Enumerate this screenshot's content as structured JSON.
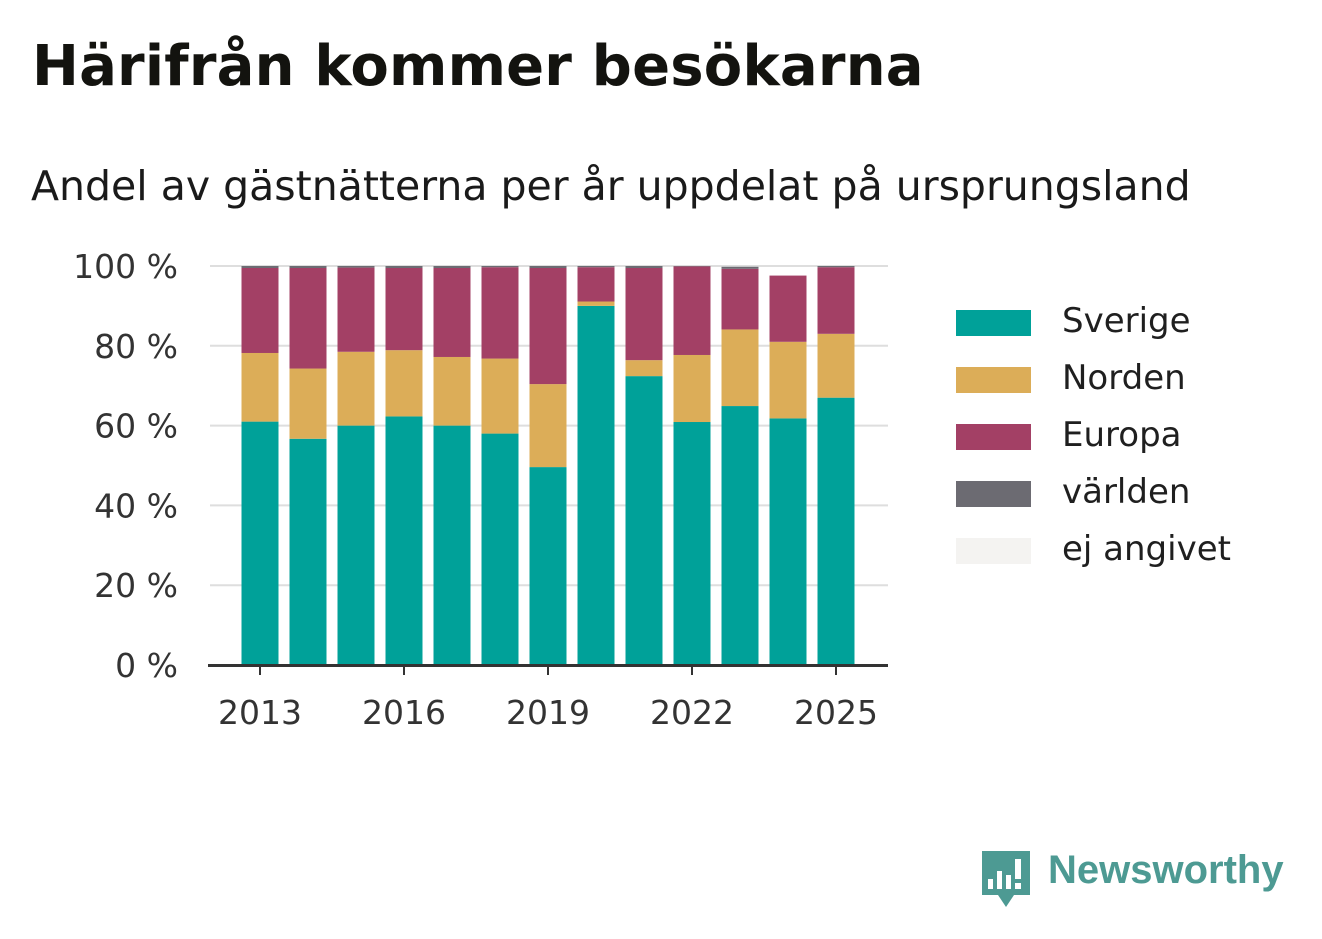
{
  "title": "Härifrån kommer besökarna",
  "subtitle": "Andel av gästnätterna per år uppdelat på ursprungsland",
  "legend": [
    {
      "label": "Sverige",
      "color": "#00a199"
    },
    {
      "label": "Norden",
      "color": "#dcad58"
    },
    {
      "label": "Europa",
      "color": "#a34065"
    },
    {
      "label": "världen",
      "color": "#6c6b72"
    },
    {
      "label": "ej angivet",
      "color": "#f4f3f1"
    }
  ],
  "brand": {
    "name": "Newsworthy",
    "icon": "newsworthy-logo-icon"
  },
  "chart_data": {
    "type": "bar",
    "stacked": true,
    "categories": [
      "2013",
      "2014",
      "2015",
      "2016",
      "2017",
      "2018",
      "2019",
      "2020",
      "2021",
      "2022",
      "2023",
      "2024",
      "2025"
    ],
    "x_tick_labels": [
      "2013",
      "2016",
      "2019",
      "2022",
      "2025"
    ],
    "y_tick_labels": [
      "0 %",
      "20 %",
      "40 %",
      "60 %",
      "80 %",
      "100 %"
    ],
    "ylim": [
      0,
      100
    ],
    "grid": true,
    "legend_position": "right",
    "series": [
      {
        "name": "Sverige",
        "color": "#00a199",
        "values": [
          61,
          56.7,
          60,
          62.3,
          60,
          58,
          49.6,
          90,
          72.4,
          60.9,
          64.9,
          61.8,
          67
        ]
      },
      {
        "name": "Norden",
        "color": "#dcad58",
        "values": [
          17.2,
          17.6,
          18.5,
          16.6,
          17.2,
          18.8,
          20.8,
          1.1,
          4,
          16.8,
          19.2,
          19.2,
          16
        ]
      },
      {
        "name": "Europa",
        "color": "#a34065",
        "values": [
          21.3,
          25.2,
          21.1,
          20.6,
          22.3,
          22.9,
          29.1,
          8.6,
          23.1,
          22.2,
          15.2,
          16.6,
          16.7
        ]
      },
      {
        "name": "världen",
        "color": "#6c6b72",
        "values": [
          0.5,
          0.5,
          0.4,
          0.5,
          0.5,
          0.3,
          0.5,
          0.3,
          0.5,
          0.1,
          0.5,
          0,
          0.3
        ]
      },
      {
        "name": "ej angivet",
        "color": "#f4f3f1",
        "values": [
          0,
          0,
          0,
          0,
          0,
          0,
          0,
          0,
          0,
          0,
          0,
          0,
          0
        ]
      }
    ]
  }
}
